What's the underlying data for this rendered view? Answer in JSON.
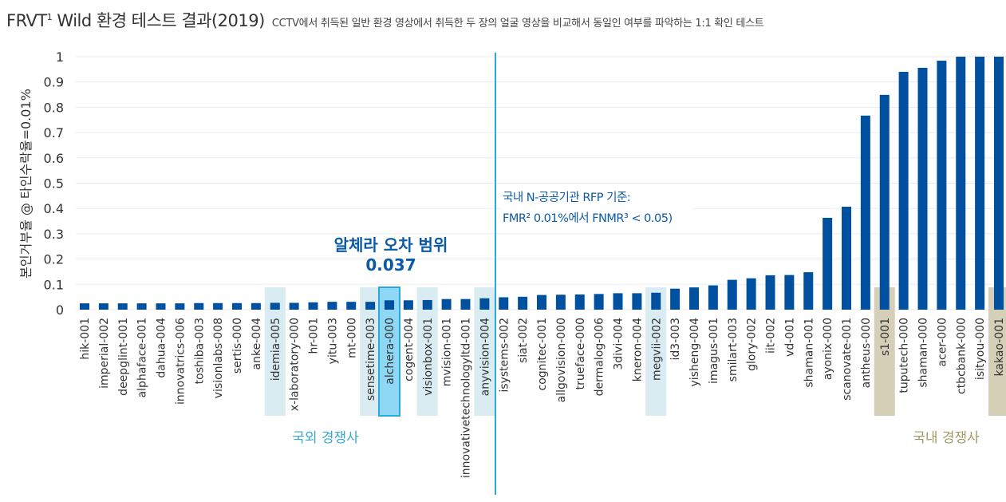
{
  "title": {
    "main": "FRVT",
    "sup": "1",
    "main_rest": " Wild 환경 테스트 결과(2019)",
    "subtitle": "CCTV에서 취득된 일반 환경 영상에서 취득한 두 장의 얼굴 영상을 비교해서 동일인 여부를 파악하는 1:1 확인 테스트"
  },
  "colors": {
    "bar": "#0050a0",
    "highlight_foreign": "#d9ecf2",
    "highlight_alchera": "#8fd8f5",
    "alchera_border": "#29a9e0",
    "highlight_domestic": "#d6cfb8",
    "rfp_line": "#29a9e0",
    "foreign_label": "#3aa9d0",
    "domestic_label": "#a39a66",
    "annotation": "#0b5aa6"
  },
  "chart_data": {
    "type": "bar",
    "ylabel": "본인거부율 @ 타인수락율=0.01%",
    "xlabel": "",
    "ylim": [
      0,
      1
    ],
    "yticks": [
      "0",
      "0.1",
      "0.2",
      "0.3",
      "0.4",
      "0.5",
      "0.6",
      "0.7",
      "0.8",
      "0.9",
      "1"
    ],
    "grid": true,
    "categories": [
      "hik-001",
      "imperial-002",
      "deepglint-001",
      "alphaface-001",
      "dahua-004",
      "innovatrics-006",
      "toshiba-003",
      "visionlabs-008",
      "sertis-000",
      "anke-004",
      "idemia-005",
      "x-laboratory-000",
      "hr-001",
      "yitu-003",
      "mt-000",
      "sensetime-003",
      "alchera-000",
      "cogent-004",
      "visionbox-001",
      "mvision-001",
      "innovativetechnologyltd-001",
      "anyvision-004",
      "isystems-002",
      "siat-002",
      "cognitec-001",
      "allgovision-000",
      "trueface-000",
      "dermalog-006",
      "3divi-004",
      "kneron-004",
      "megvii-002",
      "id3-003",
      "yisheng-004",
      "imagus-001",
      "smilart-003",
      "glory-002",
      "iit-002",
      "vd-001",
      "shaman-001",
      "ayonix-000",
      "scanovate-001",
      "antheus-000",
      "s1-001",
      "tuputech-000",
      "shaman-000",
      "acer-000",
      "ctbcbank-000",
      "isityou-000",
      "kakao-001"
    ],
    "values": [
      0.025,
      0.025,
      0.025,
      0.025,
      0.025,
      0.025,
      0.026,
      0.026,
      0.026,
      0.026,
      0.027,
      0.027,
      0.029,
      0.031,
      0.031,
      0.031,
      0.037,
      0.037,
      0.038,
      0.042,
      0.042,
      0.045,
      0.049,
      0.051,
      0.058,
      0.059,
      0.06,
      0.062,
      0.065,
      0.065,
      0.067,
      0.083,
      0.088,
      0.096,
      0.118,
      0.124,
      0.136,
      0.137,
      0.148,
      0.363,
      0.407,
      0.767,
      0.849,
      0.94,
      0.956,
      0.984,
      1.0,
      1.0,
      1.0
    ],
    "highlight_foreign": [
      "idemia-005",
      "sensetime-003",
      "visionbox-001",
      "anyvision-004",
      "megvii-002"
    ],
    "highlight_alchera": [
      "alchera-000"
    ],
    "highlight_domestic": [
      "s1-001",
      "kakao-001"
    ],
    "annotations": {
      "alchera_line1": "알체라 오차 범위",
      "alchera_line2": "0.037",
      "rfp_line1": "국내 N-공공기관 RFP 기준:",
      "rfp_line2": "FMR² 0.01%에서 FNMR³ < 0.05)",
      "foreign_group": "국외 경쟁사",
      "domestic_group": "국내 경쟁사"
    }
  }
}
